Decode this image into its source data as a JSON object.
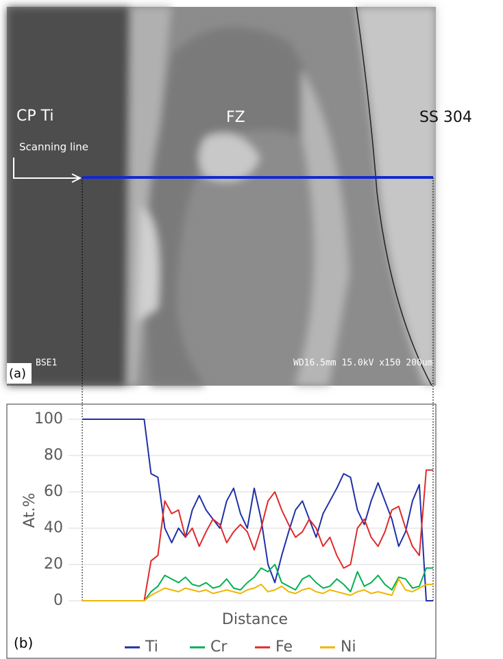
{
  "image": {
    "labels": {
      "left": "CP Ti",
      "middle": "FZ",
      "right": "SS 304",
      "arrow": "Scanning line",
      "panel": "(a)",
      "detector": "BSE1",
      "info": "WD16.5mm 15.0kV x150 200um"
    }
  },
  "chart_data": {
    "type": "line",
    "panel": "(b)",
    "y_label": "At.%",
    "x_label": "Distance",
    "ylim": [
      0,
      100
    ],
    "yticks": [
      0,
      20,
      40,
      60,
      80,
      100
    ],
    "grid": true,
    "series": [
      {
        "name": "Ti",
        "color": "#1f2fa5",
        "values": [
          100,
          100,
          100,
          100,
          100,
          100,
          100,
          100,
          100,
          100,
          70,
          68,
          40,
          32,
          40,
          35,
          50,
          58,
          50,
          45,
          40,
          55,
          62,
          48,
          40,
          62,
          45,
          20,
          10,
          25,
          38,
          50,
          55,
          45,
          35,
          48,
          55,
          62,
          70,
          68,
          50,
          42,
          55,
          65,
          55,
          45,
          30,
          38,
          55,
          64,
          0,
          0
        ]
      },
      {
        "name": "Cr",
        "color": "#00b050",
        "values": [
          0,
          0,
          0,
          0,
          0,
          0,
          0,
          0,
          0,
          0,
          5,
          8,
          14,
          12,
          10,
          13,
          9,
          8,
          10,
          7,
          8,
          12,
          7,
          6,
          10,
          13,
          18,
          16,
          20,
          10,
          8,
          6,
          12,
          14,
          10,
          7,
          8,
          12,
          9,
          5,
          16,
          8,
          10,
          14,
          9,
          6,
          13,
          12,
          7,
          8,
          18,
          18
        ]
      },
      {
        "name": "Fe",
        "color": "#e02828",
        "values": [
          0,
          0,
          0,
          0,
          0,
          0,
          0,
          0,
          0,
          0,
          22,
          25,
          55,
          48,
          50,
          35,
          40,
          30,
          38,
          45,
          42,
          32,
          38,
          42,
          38,
          28,
          40,
          55,
          60,
          50,
          42,
          35,
          38,
          45,
          40,
          30,
          35,
          25,
          18,
          20,
          40,
          45,
          35,
          30,
          38,
          50,
          52,
          40,
          30,
          25,
          72,
          72
        ]
      },
      {
        "name": "Ni",
        "color": "#f0b400",
        "values": [
          0,
          0,
          0,
          0,
          0,
          0,
          0,
          0,
          0,
          0,
          3,
          5,
          7,
          6,
          5,
          7,
          6,
          5,
          6,
          4,
          5,
          6,
          5,
          4,
          6,
          7,
          9,
          5,
          6,
          8,
          5,
          4,
          6,
          7,
          5,
          4,
          6,
          5,
          4,
          3,
          5,
          6,
          4,
          5,
          4,
          3,
          12,
          6,
          5,
          7,
          9,
          9
        ]
      }
    ]
  }
}
